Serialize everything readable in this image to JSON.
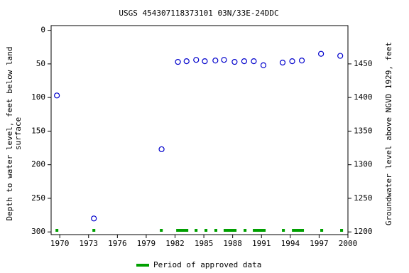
{
  "chart_data": {
    "type": "scatter",
    "title": "USGS 454307118373101 03N/33E-24DDC",
    "y_label_lines": [
      "Depth to water level, feet below land",
      "surface"
    ],
    "y2_label": "Groundwater level above NGVD 1929, feet",
    "x": [
      1969.7,
      1973.55,
      1980.6,
      1982.3,
      1983.2,
      1984.2,
      1985.1,
      1986.2,
      1987.1,
      1988.2,
      1989.2,
      1990.2,
      1991.2,
      1993.2,
      1994.2,
      1995.2,
      1997.2,
      1999.2
    ],
    "series": [
      {
        "name": "Depth to water level",
        "color": "#0000cc",
        "values": [
          97,
          280,
          177,
          47,
          46,
          44,
          46,
          45,
          44,
          47,
          46,
          46,
          52,
          48,
          46,
          45,
          35,
          38
        ]
      }
    ],
    "approved_periods": [
      [
        1969.56,
        1969.85
      ],
      [
        1973.4,
        1973.7
      ],
      [
        1980.42,
        1980.72
      ],
      [
        1982.12,
        1983.38
      ],
      [
        1984.04,
        1984.34
      ],
      [
        1985.07,
        1985.37
      ],
      [
        1986.1,
        1986.4
      ],
      [
        1987.06,
        1988.4
      ],
      [
        1989.14,
        1989.44
      ],
      [
        1990.1,
        1991.43
      ],
      [
        1993.13,
        1993.43
      ],
      [
        1994.17,
        1995.42
      ],
      [
        1997.12,
        1997.42
      ],
      [
        1999.19,
        1999.49
      ]
    ],
    "approved_color": "#00a000",
    "legend_label": "Period of approved data",
    "xlim": [
      1969.1,
      2000
    ],
    "xticks": [
      1970,
      1973,
      1976,
      1979,
      1982,
      1985,
      1988,
      1991,
      1994,
      1997,
      2000
    ],
    "ylim": [
      -7,
      304
    ],
    "yticks": [
      0,
      50,
      100,
      150,
      200,
      250,
      300
    ],
    "y2lim": [
      1507,
      1196
    ],
    "y2ticks": [
      1200,
      1250,
      1300,
      1350,
      1400,
      1450
    ],
    "grid": false
  }
}
